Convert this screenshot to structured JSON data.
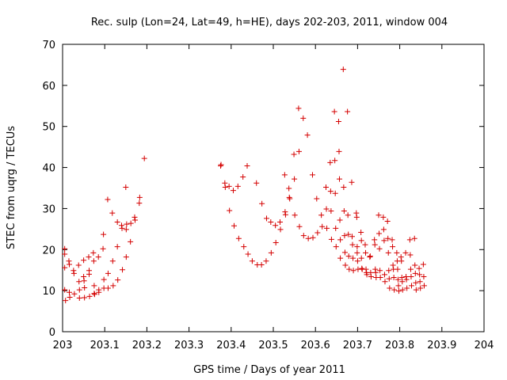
{
  "chart_data": {
    "type": "scatter",
    "title": "Rec. sulp (Lon=24, Lat=49, h=HE), days 202-203, 2011, window 004",
    "xlabel": "GPS time / Days of year 2011",
    "ylabel": "STEC from uqrg / TECUs",
    "xlim": [
      203,
      204
    ],
    "ylim": [
      0,
      70
    ],
    "x_ticks": [
      203,
      203.1,
      203.2,
      203.3,
      203.4,
      203.5,
      203.6,
      203.7,
      203.8,
      203.9,
      204
    ],
    "x_tick_labels": [
      "203",
      "203.1",
      "203.2",
      "203.3",
      "203.4",
      "203.5",
      "203.6",
      "203.7",
      "203.8",
      "203.9",
      "204"
    ],
    "y_ticks": [
      0,
      10,
      20,
      30,
      40,
      50,
      60,
      70
    ],
    "y_tick_labels": [
      "0",
      "10",
      "20",
      "30",
      "40",
      "50",
      "60",
      "70"
    ],
    "grid": false,
    "marker": "plus",
    "marker_color": "#d40000",
    "series": [
      {
        "name": "STEC",
        "points": [
          [
            203.005,
            20.2
          ],
          [
            203.005,
            18.9
          ],
          [
            203.005,
            15.6
          ],
          [
            203.005,
            10.2
          ],
          [
            203.007,
            7.6
          ],
          [
            203.015,
            17.2
          ],
          [
            203.016,
            16.4
          ],
          [
            203.016,
            9.6
          ],
          [
            203.017,
            8.4
          ],
          [
            203.026,
            14.9
          ],
          [
            203.027,
            14.2
          ],
          [
            203.028,
            9.2
          ],
          [
            203.038,
            16.2
          ],
          [
            203.039,
            12.2
          ],
          [
            203.04,
            10.2
          ],
          [
            203.04,
            8.2
          ],
          [
            203.05,
            17.4
          ],
          [
            203.05,
            13.4
          ],
          [
            203.051,
            12.4
          ],
          [
            203.052,
            10.7
          ],
          [
            203.052,
            8.3
          ],
          [
            203.062,
            18.2
          ],
          [
            203.063,
            14.9
          ],
          [
            203.063,
            14.0
          ],
          [
            203.064,
            8.6
          ],
          [
            203.073,
            19.2
          ],
          [
            203.074,
            17.2
          ],
          [
            203.075,
            11.2
          ],
          [
            203.075,
            9.3
          ],
          [
            203.076,
            9.1
          ],
          [
            203.085,
            18.2
          ],
          [
            203.086,
            10.2
          ],
          [
            203.086,
            9.6
          ],
          [
            203.096,
            20.2
          ],
          [
            203.097,
            23.7
          ],
          [
            203.098,
            10.6
          ],
          [
            203.098,
            12.7
          ],
          [
            203.107,
            32.2
          ],
          [
            203.108,
            14.2
          ],
          [
            203.108,
            10.6
          ],
          [
            203.118,
            28.9
          ],
          [
            203.119,
            17.2
          ],
          [
            203.12,
            11.2
          ],
          [
            203.13,
            26.7
          ],
          [
            203.13,
            20.7
          ],
          [
            203.131,
            12.6
          ],
          [
            203.14,
            25.9
          ],
          [
            203.141,
            25.2
          ],
          [
            203.142,
            15.1
          ],
          [
            203.15,
            35.2
          ],
          [
            203.151,
            24.9
          ],
          [
            203.151,
            18.2
          ],
          [
            203.152,
            26.2
          ],
          [
            203.161,
            21.9
          ],
          [
            203.162,
            26.4
          ],
          [
            203.171,
            27.9
          ],
          [
            203.172,
            27.2
          ],
          [
            203.182,
            31.3
          ],
          [
            203.183,
            32.7
          ],
          [
            203.194,
            42.2
          ],
          [
            203.375,
            40.4
          ],
          [
            203.376,
            40.7
          ],
          [
            203.385,
            36.2
          ],
          [
            203.386,
            35.2
          ],
          [
            203.395,
            35.4
          ],
          [
            203.396,
            29.5
          ],
          [
            203.405,
            34.4
          ],
          [
            203.407,
            25.8
          ],
          [
            203.416,
            35.4
          ],
          [
            203.418,
            22.7
          ],
          [
            203.428,
            37.7
          ],
          [
            203.43,
            20.7
          ],
          [
            203.438,
            40.4
          ],
          [
            203.44,
            18.9
          ],
          [
            203.45,
            17.2
          ],
          [
            203.46,
            36.2
          ],
          [
            203.462,
            16.3
          ],
          [
            203.472,
            16.3
          ],
          [
            203.473,
            31.2
          ],
          [
            203.483,
            17.2
          ],
          [
            203.484,
            27.6
          ],
          [
            203.494,
            26.7
          ],
          [
            203.495,
            19.2
          ],
          [
            203.505,
            25.9
          ],
          [
            203.506,
            21.7
          ],
          [
            203.516,
            26.7
          ],
          [
            203.517,
            24.9
          ],
          [
            203.527,
            38.2
          ],
          [
            203.528,
            29.2
          ],
          [
            203.529,
            28.5
          ],
          [
            203.537,
            34.9
          ],
          [
            203.538,
            32.7
          ],
          [
            203.539,
            32.4
          ],
          [
            203.549,
            43.2
          ],
          [
            203.55,
            37.2
          ],
          [
            203.551,
            28.4
          ],
          [
            203.56,
            54.4
          ],
          [
            203.561,
            43.9
          ],
          [
            203.562,
            25.6
          ],
          [
            203.571,
            52.0
          ],
          [
            203.572,
            23.4
          ],
          [
            203.581,
            47.9
          ],
          [
            203.583,
            22.7
          ],
          [
            203.593,
            38.2
          ],
          [
            203.594,
            22.9
          ],
          [
            203.603,
            32.4
          ],
          [
            203.605,
            24.1
          ],
          [
            203.614,
            28.4
          ],
          [
            203.616,
            25.6
          ],
          [
            203.625,
            35.2
          ],
          [
            203.626,
            29.9
          ],
          [
            203.627,
            25.2
          ],
          [
            203.635,
            41.2
          ],
          [
            203.636,
            34.2
          ],
          [
            203.637,
            29.4
          ],
          [
            203.638,
            22.5
          ],
          [
            203.645,
            53.6
          ],
          [
            203.646,
            41.7
          ],
          [
            203.647,
            33.7
          ],
          [
            203.648,
            25.2
          ],
          [
            203.649,
            20.7
          ],
          [
            203.655,
            51.2
          ],
          [
            203.656,
            43.9
          ],
          [
            203.657,
            37.2
          ],
          [
            203.658,
            27.2
          ],
          [
            203.659,
            22.4
          ],
          [
            203.659,
            17.9
          ],
          [
            203.666,
            63.9
          ],
          [
            203.667,
            35.2
          ],
          [
            203.668,
            29.4
          ],
          [
            203.669,
            23.4
          ],
          [
            203.67,
            19.3
          ],
          [
            203.671,
            16.2
          ],
          [
            203.676,
            53.6
          ],
          [
            203.677,
            28.4
          ],
          [
            203.678,
            23.7
          ],
          [
            203.679,
            18.4
          ],
          [
            203.68,
            15.2
          ],
          [
            203.686,
            36.4
          ],
          [
            203.687,
            23.2
          ],
          [
            203.688,
            21.2
          ],
          [
            203.689,
            17.9
          ],
          [
            203.69,
            14.9
          ],
          [
            203.697,
            28.9
          ],
          [
            203.698,
            27.9
          ],
          [
            203.699,
            20.7
          ],
          [
            203.699,
            19.2
          ],
          [
            203.7,
            17.2
          ],
          [
            203.701,
            15.2
          ],
          [
            203.708,
            24.2
          ],
          [
            203.709,
            22.2
          ],
          [
            203.709,
            17.9
          ],
          [
            203.71,
            15.4
          ],
          [
            203.711,
            15.2
          ],
          [
            203.718,
            21.2
          ],
          [
            203.719,
            19.2
          ],
          [
            203.72,
            15.2
          ],
          [
            203.721,
            14.4
          ],
          [
            203.722,
            13.9
          ],
          [
            203.729,
            18.2
          ],
          [
            203.73,
            18.4
          ],
          [
            203.731,
            14.4
          ],
          [
            203.732,
            13.4
          ],
          [
            203.74,
            22.4
          ],
          [
            203.741,
            21.2
          ],
          [
            203.742,
            15.2
          ],
          [
            203.743,
            14.4
          ],
          [
            203.744,
            13.2
          ],
          [
            203.75,
            28.4
          ],
          [
            203.751,
            23.9
          ],
          [
            203.752,
            20.2
          ],
          [
            203.753,
            14.9
          ],
          [
            203.754,
            13.2
          ],
          [
            203.761,
            27.9
          ],
          [
            203.762,
            24.9
          ],
          [
            203.763,
            22.2
          ],
          [
            203.764,
            13.9
          ],
          [
            203.765,
            12.2
          ],
          [
            203.771,
            26.9
          ],
          [
            203.772,
            22.7
          ],
          [
            203.773,
            19.2
          ],
          [
            203.774,
            14.9
          ],
          [
            203.775,
            12.9
          ],
          [
            203.776,
            10.6
          ],
          [
            203.782,
            22.4
          ],
          [
            203.783,
            20.7
          ],
          [
            203.784,
            16.2
          ],
          [
            203.785,
            15.2
          ],
          [
            203.786,
            13.2
          ],
          [
            203.787,
            10.2
          ],
          [
            203.793,
            19.2
          ],
          [
            203.794,
            17.2
          ],
          [
            203.795,
            15.2
          ],
          [
            203.796,
            12.7
          ],
          [
            203.797,
            11.2
          ],
          [
            203.798,
            9.9
          ],
          [
            203.803,
            18.2
          ],
          [
            203.804,
            17.2
          ],
          [
            203.805,
            13.2
          ],
          [
            203.806,
            12.2
          ],
          [
            203.807,
            10.2
          ],
          [
            203.814,
            19.2
          ],
          [
            203.815,
            13.4
          ],
          [
            203.816,
            12.7
          ],
          [
            203.817,
            10.6
          ],
          [
            203.824,
            22.4
          ],
          [
            203.825,
            18.7
          ],
          [
            203.826,
            15.2
          ],
          [
            203.827,
            13.4
          ],
          [
            203.828,
            11.2
          ],
          [
            203.835,
            22.7
          ],
          [
            203.836,
            16.2
          ],
          [
            203.837,
            14.2
          ],
          [
            203.838,
            11.9
          ],
          [
            203.839,
            10.2
          ],
          [
            203.846,
            15.4
          ],
          [
            203.847,
            13.9
          ],
          [
            203.848,
            12.2
          ],
          [
            203.849,
            10.6
          ],
          [
            203.856,
            16.4
          ],
          [
            203.857,
            13.4
          ],
          [
            203.858,
            11.2
          ]
        ]
      }
    ]
  }
}
